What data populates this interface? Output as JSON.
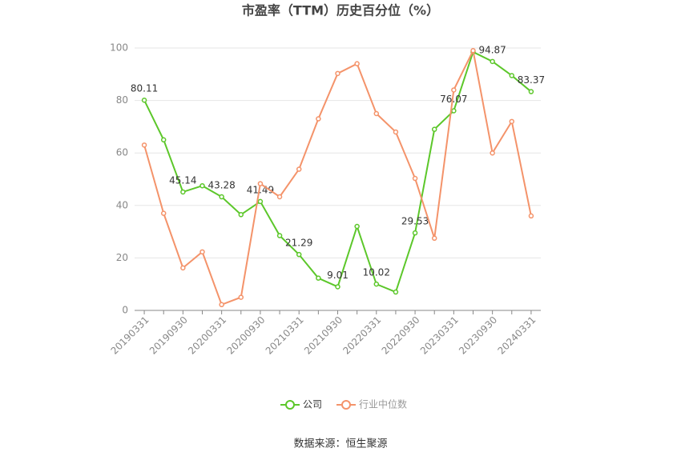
{
  "chart_data": {
    "type": "line",
    "title": "市盈率（TTM）历史百分位（%）",
    "source": "数据来源：恒生聚源",
    "categories": [
      "20190331",
      null,
      "20190930",
      null,
      "20200331",
      null,
      "20200930",
      null,
      "20210331",
      null,
      "20210930",
      null,
      "20220331",
      null,
      "20220930",
      null,
      "20230331",
      null,
      "20230930",
      null,
      "20240331"
    ],
    "series": [
      {
        "name": "公司",
        "color": "#5cc72a",
        "values": [
          80.11,
          65,
          45.14,
          47.5,
          43.28,
          36.5,
          41.49,
          28.5,
          21.29,
          12.3,
          9.01,
          32,
          10.02,
          7,
          29.53,
          69,
          76.07,
          98.5,
          94.87,
          89.5,
          83.37
        ],
        "value_labels": [
          "80.11",
          null,
          "45.14",
          null,
          "43.28",
          null,
          "41.49",
          null,
          "21.29",
          null,
          "9.01",
          null,
          "10.02",
          null,
          "29.53",
          null,
          "76.07",
          null,
          "94.87",
          null,
          "83.37"
        ]
      },
      {
        "name": "行业中位数",
        "color": "#f4936a",
        "values": [
          63,
          37,
          16.2,
          22.3,
          2.2,
          5,
          48.3,
          43.3,
          53.8,
          73,
          90.3,
          94,
          75,
          68,
          50.3,
          27.5,
          84,
          99,
          60,
          72,
          36
        ]
      }
    ],
    "ylim": [
      0,
      100
    ],
    "yticks": [
      0,
      20,
      40,
      60,
      80,
      100
    ],
    "grid": true,
    "legend": "bottom"
  }
}
